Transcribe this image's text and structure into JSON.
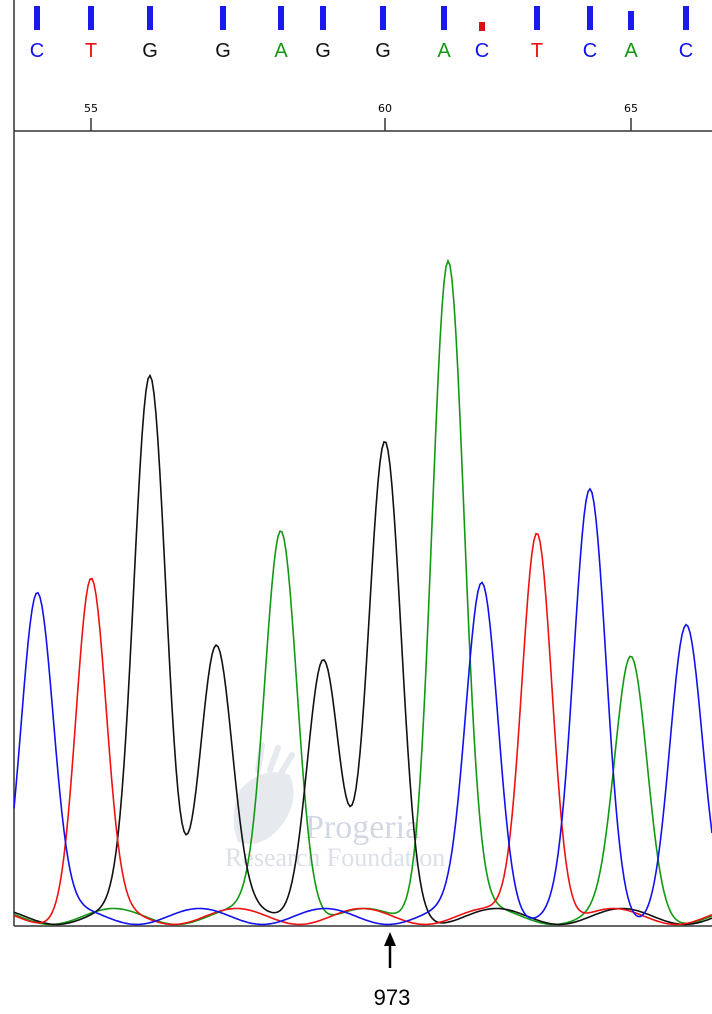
{
  "colors": {
    "A": "#119911",
    "C": "#1111ee",
    "G": "#111111",
    "T": "#ee1111",
    "quality_bar": "#1a1aee",
    "low_quality_bar": "#dd1111",
    "border": "#333333"
  },
  "watermark": {
    "line1": "Progeria",
    "line2": "Research Foundation"
  },
  "annotation": {
    "label": "973"
  },
  "chart_data": {
    "type": "line",
    "title": "",
    "xlabel": "",
    "ylabel": "",
    "base_calls": [
      {
        "base": "C",
        "quality": "high"
      },
      {
        "base": "T",
        "quality": "high"
      },
      {
        "base": "G",
        "quality": "high"
      },
      {
        "base": "G",
        "quality": "high"
      },
      {
        "base": "A",
        "quality": "high"
      },
      {
        "base": "G",
        "quality": "high"
      },
      {
        "base": "G",
        "quality": "high"
      },
      {
        "base": "A",
        "quality": "high"
      },
      {
        "base": "C",
        "quality": "low"
      },
      {
        "base": "T",
        "quality": "high"
      },
      {
        "base": "C",
        "quality": "high"
      },
      {
        "base": "A",
        "quality": "medium"
      },
      {
        "base": "C",
        "quality": "high"
      }
    ],
    "position_ticks": [
      55,
      60,
      65
    ],
    "first_base_position": 54,
    "peak_heights_relative": {
      "C": [
        0.41,
        0.42,
        0.53,
        0.36
      ],
      "T": [
        0.42,
        0.49
      ],
      "G": [
        0.68,
        0.34,
        0.33,
        0.59
      ],
      "A": [
        0.49,
        0.83,
        0.32
      ]
    }
  }
}
